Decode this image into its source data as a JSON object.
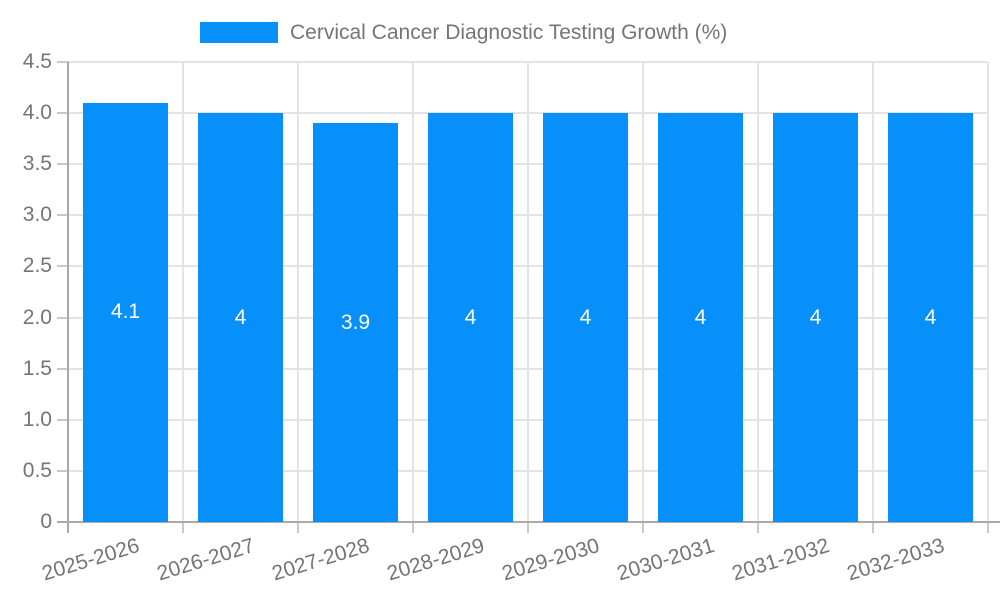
{
  "chart_data": {
    "type": "bar",
    "title": "Cervical Cancer Diagnostic Testing Growth (%)",
    "categories": [
      "2025-2026",
      "2026-2027",
      "2027-2028",
      "2028-2029",
      "2029-2030",
      "2030-2031",
      "2031-2032",
      "2032-2033"
    ],
    "values": [
      4.1,
      4,
      3.9,
      4,
      4,
      4,
      4,
      4
    ],
    "bar_labels": [
      "4.1",
      "4",
      "3.9",
      "4",
      "4",
      "4",
      "4",
      "4"
    ],
    "xlabel": "",
    "ylabel": "",
    "ylim": [
      0,
      4.5
    ],
    "ytick_step": 0.5,
    "ytick_labels": [
      "0",
      "0.5",
      "1.0",
      "1.5",
      "2.0",
      "2.5",
      "3.0",
      "3.5",
      "4.0",
      "4.5"
    ],
    "grid": true,
    "legend_position": "top-center",
    "colors": {
      "bar": "#0890FA",
      "grid_line": "#e4e4e4",
      "axis_line": "#a9a9a9",
      "tick_line": "#c9c9c9",
      "label_text": "#757575",
      "bar_label_text": "#ffffff",
      "background": "#ffffff"
    }
  }
}
